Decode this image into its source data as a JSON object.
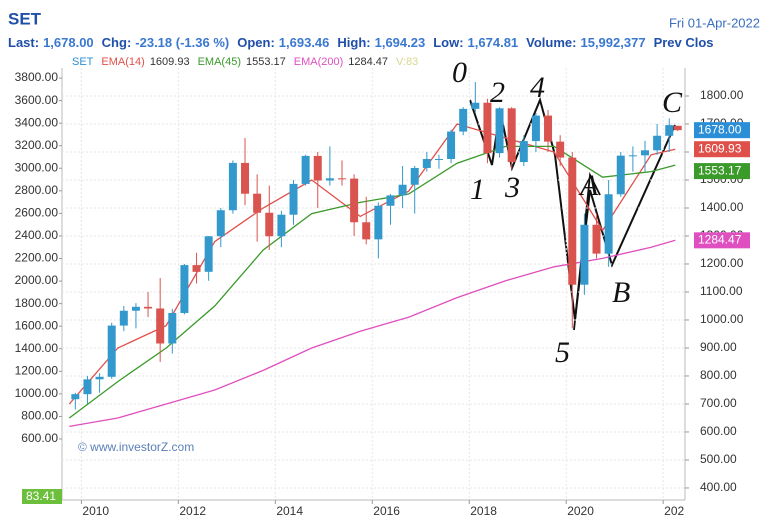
{
  "header": {
    "title": "SET",
    "date": "Fri 01-Apr-2022",
    "fields": [
      {
        "label": "Last:",
        "value": "1,678.00"
      },
      {
        "label": "Chg:",
        "value": "-23.18 (-1.36 %)"
      },
      {
        "label": "Open:",
        "value": "1,693.46"
      },
      {
        "label": "High:",
        "value": "1,694.23"
      },
      {
        "label": "Low:",
        "value": "1,674.81"
      },
      {
        "label": "Volume:",
        "value": "15,992,377"
      },
      {
        "label": "Prev Clos",
        "value": null
      }
    ]
  },
  "chart_data": {
    "type": "candlestick",
    "candles": {
      "name": "SET",
      "up_color": "#3399cc",
      "down_color": "#d9534f",
      "x": [
        2009.875,
        2010.125,
        2010.375,
        2010.625,
        2010.875,
        2011.125,
        2011.375,
        2011.625,
        2011.875,
        2012.125,
        2012.375,
        2012.625,
        2012.875,
        2013.125,
        2013.375,
        2013.625,
        2013.875,
        2014.125,
        2014.375,
        2014.625,
        2014.875,
        2015.125,
        2015.375,
        2015.625,
        2015.875,
        2016.125,
        2016.375,
        2016.625,
        2016.875,
        2017.125,
        2017.375,
        2017.625,
        2017.875,
        2018.125,
        2018.375,
        2018.625,
        2018.875,
        2019.125,
        2019.375,
        2019.625,
        2019.875,
        2020.125,
        2020.375,
        2020.625,
        2020.875,
        2021.125,
        2021.375,
        2021.625,
        2021.875,
        2022.125,
        2022.3
      ],
      "open": [
        717,
        735,
        788,
        797,
        980,
        1033,
        1047,
        1041,
        916,
        1025,
        1196,
        1172,
        1299,
        1392,
        1561,
        1451,
        1383,
        1299,
        1376,
        1486,
        1586,
        1498,
        1506,
        1505,
        1349,
        1288,
        1408,
        1445,
        1483,
        1543,
        1575,
        1575,
        1673,
        1754,
        1776,
        1596,
        1756,
        1564,
        1639,
        1730,
        1637,
        1580,
        1126,
        1340,
        1237,
        1449,
        1587,
        1588,
        1606,
        1658,
        1693.46
      ],
      "high": [
        740,
        800,
        810,
        990,
        1050,
        1060,
        1100,
        1150,
        1040,
        1200,
        1240,
        1300,
        1400,
        1570,
        1650,
        1520,
        1480,
        1390,
        1500,
        1590,
        1600,
        1620,
        1570,
        1520,
        1440,
        1420,
        1450,
        1550,
        1550,
        1600,
        1590,
        1680,
        1760,
        1850,
        1790,
        1760,
        1760,
        1660,
        1740,
        1750,
        1660,
        1600,
        1380,
        1380,
        1500,
        1600,
        1620,
        1640,
        1700,
        1720,
        1694.23
      ],
      "low": [
        680,
        700,
        740,
        790,
        960,
        970,
        1010,
        850,
        880,
        1020,
        1130,
        1140,
        1260,
        1380,
        1410,
        1280,
        1250,
        1260,
        1340,
        1480,
        1400,
        1480,
        1480,
        1300,
        1270,
        1220,
        1340,
        1400,
        1380,
        1530,
        1540,
        1560,
        1660,
        1740,
        1560,
        1580,
        1540,
        1550,
        1600,
        1600,
        1550,
        970,
        1090,
        1220,
        1190,
        1440,
        1530,
        1530,
        1590,
        1600,
        1674.81
      ],
      "close": [
        735,
        788,
        797,
        980,
        1033,
        1047,
        1041,
        916,
        1025,
        1196,
        1172,
        1299,
        1392,
        1561,
        1451,
        1383,
        1299,
        1376,
        1486,
        1586,
        1498,
        1506,
        1505,
        1349,
        1288,
        1408,
        1445,
        1483,
        1543,
        1575,
        1575,
        1673,
        1754,
        1776,
        1596,
        1756,
        1564,
        1639,
        1730,
        1637,
        1580,
        1126,
        1340,
        1237,
        1449,
        1587,
        1588,
        1606,
        1658,
        1696,
        1678
      ],
      "price_tag": "1678.00",
      "tag_color": "#2a8fd6"
    },
    "series": [
      {
        "name": "EMA(14)",
        "color": "#e0504a",
        "x": [
          2009.75,
          2010.75,
          2011.75,
          2012.75,
          2013.75,
          2014.75,
          2015.75,
          2016.75,
          2017.75,
          2018.75,
          2019.75,
          2020.75,
          2021.75,
          2022.25
        ],
        "values": [
          700,
          900,
          980,
          1280,
          1400,
          1500,
          1370,
          1460,
          1700,
          1650,
          1600,
          1320,
          1590,
          1609.93
        ]
      },
      {
        "name": "EMA(45)",
        "color": "#3a9a2a",
        "x": [
          2009.75,
          2010.75,
          2011.75,
          2012.75,
          2013.75,
          2014.75,
          2015.75,
          2016.75,
          2017.75,
          2018.75,
          2019.75,
          2020.75,
          2021.75,
          2022.25
        ],
        "values": [
          650,
          780,
          900,
          1050,
          1250,
          1380,
          1420,
          1450,
          1560,
          1620,
          1620,
          1510,
          1530,
          1553.17
        ]
      },
      {
        "name": "EMA(200)",
        "color": "#e04fbf",
        "x": [
          2009.75,
          2010.75,
          2011.75,
          2012.75,
          2013.75,
          2014.75,
          2015.75,
          2016.75,
          2017.75,
          2018.75,
          2019.75,
          2020.75,
          2021.75,
          2022.25
        ],
        "values": [
          620,
          650,
          700,
          750,
          820,
          900,
          960,
          1010,
          1080,
          1140,
          1190,
          1220,
          1260,
          1284.47
        ]
      }
    ],
    "legend_extra": "V:83",
    "volume_tag": "83.41",
    "watermark": "© www.investorZ.com",
    "annotations": [
      "0",
      "2",
      "4",
      "1",
      "3",
      "5",
      "A",
      "B",
      "C"
    ],
    "xlim": [
      2009.6,
      2022.45
    ],
    "xticks": [
      2010,
      2012,
      2014,
      2016,
      2018,
      2020,
      {
        "value": 2022,
        "label": "202"
      }
    ],
    "ylim": [
      357,
      1900
    ],
    "yticks": [
      {
        "value": 1800,
        "label": "1800.00"
      },
      {
        "value": 1700,
        "label": "1700.00"
      },
      {
        "value": 1600,
        "label": "1600.00"
      },
      {
        "value": 1500,
        "label": "1500.00"
      },
      {
        "value": 1400,
        "label": "1400.00"
      },
      {
        "value": 1300,
        "label": "1300.00"
      },
      {
        "value": 1200,
        "label": "1200.00"
      },
      {
        "value": 1100,
        "label": "1100.00"
      },
      {
        "value": 1000,
        "label": "1000.00"
      },
      {
        "value": 900,
        "label": "900.00"
      },
      {
        "value": 800,
        "label": "800.00"
      },
      {
        "value": 700,
        "label": "700.00"
      },
      {
        "value": 600,
        "label": "600.00"
      },
      {
        "value": 500,
        "label": "500.00"
      },
      {
        "value": 400,
        "label": "400.00"
      }
    ],
    "y2lim": [
      59,
      3889
    ],
    "y2ticks": [
      {
        "value": 3800,
        "label": "3800.00"
      },
      {
        "value": 3600,
        "label": "3600.00"
      },
      {
        "value": 3400,
        "label": "3400.00"
      },
      {
        "value": 3200,
        "label": "3200.00"
      },
      {
        "value": 3000,
        "label": "3000.00"
      },
      {
        "value": 2800,
        "label": "2800.00"
      },
      {
        "value": 2600,
        "label": "2600.00"
      },
      {
        "value": 2400,
        "label": "2400.00"
      },
      {
        "value": 2200,
        "label": "2200.00"
      },
      {
        "value": 2000,
        "label": "2000.00"
      },
      {
        "value": 1800,
        "label": "1800.00"
      },
      {
        "value": 1600,
        "label": "1600.00"
      },
      {
        "value": 1400,
        "label": "1400.00"
      },
      {
        "value": 1200,
        "label": "1200.00"
      },
      {
        "value": 1000,
        "label": "1000.00"
      },
      {
        "value": 800,
        "label": "800.00"
      },
      {
        "value": 600,
        "label": "600.00"
      }
    ],
    "grid": true
  }
}
